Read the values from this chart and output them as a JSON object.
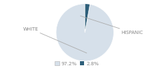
{
  "slices": [
    97.2,
    2.8
  ],
  "labels": [
    "WHITE",
    "HISPANIC"
  ],
  "colors": [
    "#d6e0ea",
    "#2e5f7a"
  ],
  "legend_labels": [
    "97.2%",
    "2.8%"
  ],
  "legend_colors": [
    "#d6e0ea",
    "#2e5f7a"
  ],
  "startangle": 90,
  "bg_color": "#ffffff",
  "text_color": "#888888",
  "arrow_color": "#aaaaaa"
}
